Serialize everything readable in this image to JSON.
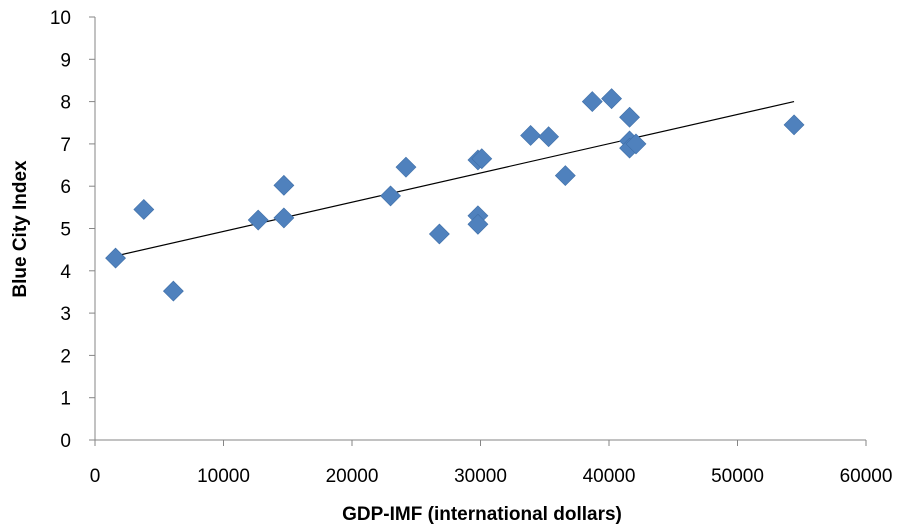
{
  "chart_data": {
    "type": "scatter",
    "title": "",
    "xlabel": "GDP-IMF (international dollars)",
    "ylabel": "Blue City Index",
    "xlim": [
      0,
      60000
    ],
    "ylim": [
      0,
      10
    ],
    "x_ticks": [
      0,
      10000,
      20000,
      30000,
      40000,
      50000,
      60000
    ],
    "y_ticks": [
      0,
      1,
      2,
      3,
      4,
      5,
      6,
      7,
      8,
      9,
      10
    ],
    "x_tick_labels": [
      "0",
      "10000",
      "20000",
      "30000",
      "40000",
      "50000",
      "60000"
    ],
    "y_tick_labels": [
      "0",
      "1",
      "2",
      "3",
      "4",
      "5",
      "6",
      "7",
      "8",
      "9",
      "10"
    ],
    "grid": false,
    "legend": "none",
    "marker": "diamond",
    "marker_color": "#4f81bd",
    "trendline_color": "#000000",
    "points": [
      {
        "x": 1600,
        "y": 4.3
      },
      {
        "x": 3800,
        "y": 5.45
      },
      {
        "x": 6100,
        "y": 3.52
      },
      {
        "x": 12700,
        "y": 5.2
      },
      {
        "x": 14700,
        "y": 6.02
      },
      {
        "x": 14700,
        "y": 5.25
      },
      {
        "x": 23000,
        "y": 5.77
      },
      {
        "x": 24200,
        "y": 6.45
      },
      {
        "x": 26800,
        "y": 4.87
      },
      {
        "x": 29800,
        "y": 6.62
      },
      {
        "x": 30100,
        "y": 6.65
      },
      {
        "x": 29800,
        "y": 5.3
      },
      {
        "x": 29800,
        "y": 5.1
      },
      {
        "x": 33900,
        "y": 7.2
      },
      {
        "x": 35300,
        "y": 7.17
      },
      {
        "x": 36600,
        "y": 6.25
      },
      {
        "x": 38700,
        "y": 8.0
      },
      {
        "x": 40200,
        "y": 8.07
      },
      {
        "x": 41600,
        "y": 7.63
      },
      {
        "x": 41600,
        "y": 7.07
      },
      {
        "x": 41600,
        "y": 6.9
      },
      {
        "x": 42100,
        "y": 7.0
      },
      {
        "x": 54400,
        "y": 7.45
      }
    ],
    "trendline": {
      "x": [
        1600,
        54400
      ],
      "y": [
        4.35,
        8.0
      ]
    }
  }
}
